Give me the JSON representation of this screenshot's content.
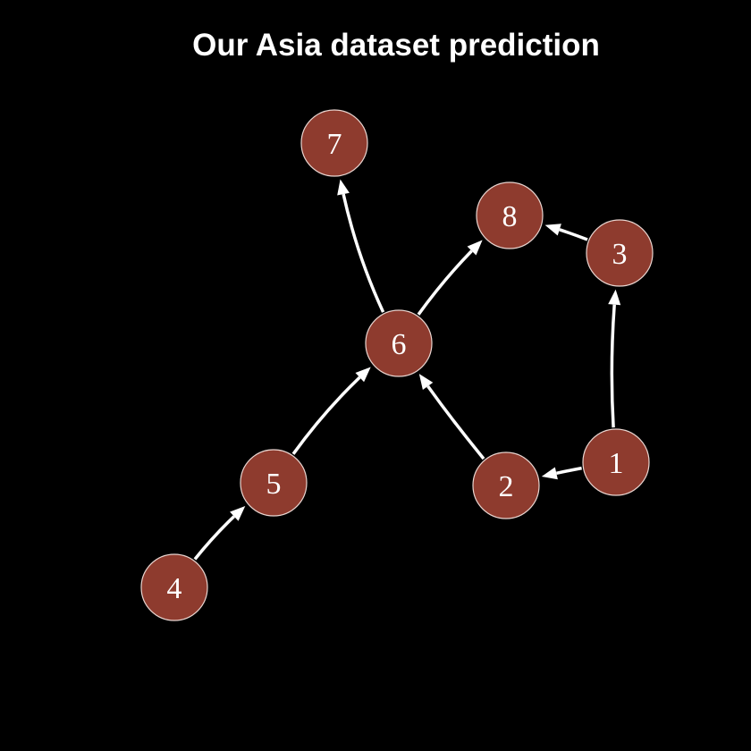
{
  "title": "Our Asia dataset prediction",
  "colors": {
    "background": "#000000",
    "node_fill": "#8e3b2e",
    "node_stroke": "#e9d5d0",
    "edge": "#ffffff",
    "text": "#ffffff"
  },
  "nodes": [
    {
      "id": "1",
      "label": "1"
    },
    {
      "id": "2",
      "label": "2"
    },
    {
      "id": "3",
      "label": "3"
    },
    {
      "id": "4",
      "label": "4"
    },
    {
      "id": "5",
      "label": "5"
    },
    {
      "id": "6",
      "label": "6"
    },
    {
      "id": "7",
      "label": "7"
    },
    {
      "id": "8",
      "label": "8"
    }
  ],
  "edges": [
    {
      "from": "1",
      "to": "2"
    },
    {
      "from": "1",
      "to": "3"
    },
    {
      "from": "3",
      "to": "8"
    },
    {
      "from": "2",
      "to": "6"
    },
    {
      "from": "4",
      "to": "5"
    },
    {
      "from": "5",
      "to": "6"
    },
    {
      "from": "6",
      "to": "7"
    },
    {
      "from": "6",
      "to": "8"
    }
  ]
}
